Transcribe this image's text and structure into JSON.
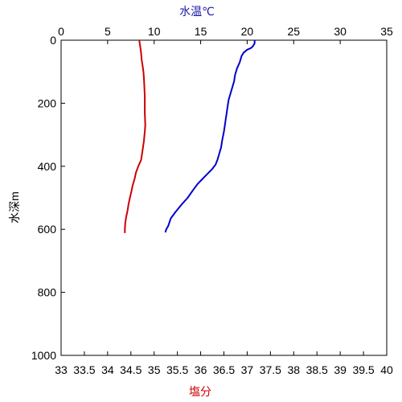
{
  "chart_data": {
    "type": "line",
    "title": "",
    "axes": {
      "top_x": {
        "label": "水温℃",
        "label_color": "#1a1aa6",
        "range": [
          0,
          35
        ],
        "ticks": [
          "0",
          "5",
          "10",
          "15",
          "20",
          "25",
          "30",
          "35"
        ],
        "tick_values": [
          0,
          5,
          10,
          15,
          20,
          25,
          30,
          35
        ]
      },
      "bottom_x": {
        "label": "塩分",
        "label_color": "#cc0000",
        "range": [
          33,
          40
        ],
        "ticks": [
          "33",
          "33.5",
          "34",
          "34.5",
          "35",
          "35.5",
          "36",
          "36.5",
          "37",
          "37.5",
          "38",
          "38.5",
          "39",
          "39.5",
          "40"
        ],
        "tick_values": [
          33,
          33.5,
          34,
          34.5,
          35,
          35.5,
          36,
          36.5,
          37,
          37.5,
          38,
          38.5,
          39,
          39.5,
          40
        ]
      },
      "y": {
        "label": "水深m",
        "range": [
          0,
          1000
        ],
        "inverted": true,
        "ticks": [
          "0",
          "200",
          "400",
          "600",
          "800",
          "1000"
        ],
        "tick_values": [
          0,
          200,
          400,
          600,
          800,
          1000
        ]
      }
    },
    "grid": false,
    "series": [
      {
        "axis": "top_x",
        "color": "#0000cc",
        "points": [
          [
            20.8,
            0
          ],
          [
            20.8,
            10
          ],
          [
            20.6,
            20
          ],
          [
            20.4,
            25
          ],
          [
            20.0,
            30
          ],
          [
            19.6,
            40
          ],
          [
            19.4,
            50
          ],
          [
            19.2,
            70
          ],
          [
            18.9,
            90
          ],
          [
            18.7,
            110
          ],
          [
            18.6,
            130
          ],
          [
            18.4,
            150
          ],
          [
            18.2,
            170
          ],
          [
            18.0,
            190
          ],
          [
            17.9,
            210
          ],
          [
            17.8,
            230
          ],
          [
            17.7,
            250
          ],
          [
            17.6,
            270
          ],
          [
            17.5,
            290
          ],
          [
            17.3,
            320
          ],
          [
            17.2,
            340
          ],
          [
            17.0,
            360
          ],
          [
            16.8,
            380
          ],
          [
            16.6,
            395
          ],
          [
            16.2,
            410
          ],
          [
            15.7,
            425
          ],
          [
            15.2,
            440
          ],
          [
            14.7,
            455
          ],
          [
            14.2,
            475
          ],
          [
            13.6,
            500
          ],
          [
            13.0,
            520
          ],
          [
            12.3,
            545
          ],
          [
            11.8,
            565
          ],
          [
            11.5,
            590
          ],
          [
            11.3,
            600
          ],
          [
            11.2,
            610
          ]
        ]
      },
      {
        "axis": "bottom_x",
        "color": "#cc0000",
        "points": [
          [
            34.68,
            0
          ],
          [
            34.69,
            10
          ],
          [
            34.7,
            20
          ],
          [
            34.72,
            40
          ],
          [
            34.73,
            60
          ],
          [
            34.75,
            80
          ],
          [
            34.77,
            100
          ],
          [
            34.78,
            120
          ],
          [
            34.79,
            150
          ],
          [
            34.8,
            180
          ],
          [
            34.8,
            200
          ],
          [
            34.8,
            230
          ],
          [
            34.81,
            270
          ],
          [
            34.8,
            290
          ],
          [
            34.78,
            320
          ],
          [
            34.75,
            350
          ],
          [
            34.72,
            380
          ],
          [
            34.66,
            400
          ],
          [
            34.61,
            420
          ],
          [
            34.58,
            440
          ],
          [
            34.54,
            460
          ],
          [
            34.51,
            480
          ],
          [
            34.48,
            500
          ],
          [
            34.45,
            520
          ],
          [
            34.43,
            540
          ],
          [
            34.4,
            560
          ],
          [
            34.38,
            580
          ],
          [
            34.37,
            600
          ],
          [
            34.37,
            612
          ]
        ]
      }
    ]
  }
}
